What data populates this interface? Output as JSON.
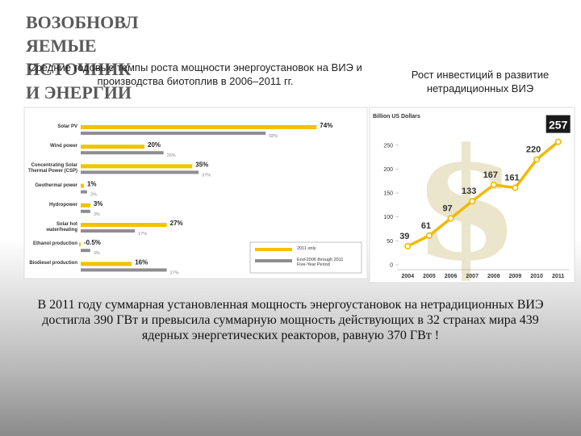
{
  "slide": {
    "title_lines": [
      "ВОЗОБНОВЛ",
      "ЯЕМЫЕ",
      "ИСТОЧНИК",
      "И ЭНЕРГИИ"
    ],
    "body": "В 2011 году суммарная установленная мощность энергоустановок на нетрадиционных ВИЭ достигла 390 ГВт и превысила суммарную мощность действующих в 32 странах мира 439 ядерных энергетических реакторов, равную 370 ГВт !"
  },
  "chart_data": [
    {
      "type": "hbar",
      "title": "Средние годовые темпы роста мощности энергоустановок на ВИЭ и производства биотоплив в 2006–2011 гг.",
      "categories": [
        "Solar PV",
        "Wind power",
        "Concentrating Solar Thermal Power (CSP)",
        "Geothermal power",
        "Hydropower",
        "Solar hot water/heating",
        "Ethanol production",
        "Biodiesel production"
      ],
      "series": [
        {
          "name": "2011 only",
          "color": "#f2c200",
          "values": [
            74,
            20,
            35,
            1,
            3,
            27,
            -0.5,
            16
          ],
          "value_labels": [
            "74%",
            "20%",
            "35%",
            "1%",
            "3%",
            "27%",
            "-0.5%",
            "16%"
          ]
        },
        {
          "name": "End-2006 through 2011 Five-Year Period",
          "color": "#8e8e8e",
          "values": [
            58,
            26,
            37,
            2,
            3,
            17,
            3,
            27
          ],
          "value_labels": [
            "58%",
            "26%",
            "37%",
            "2%",
            "3%",
            "17%",
            "3%",
            "27%"
          ]
        }
      ]
    },
    {
      "type": "line",
      "title": "Рост инвестиций в развитие нетрадиционных ВИЭ",
      "y_label": "Billion US Dollars",
      "categories": [
        "2004",
        "2005",
        "2006",
        "2007",
        "2008",
        "2009",
        "2010",
        "2011"
      ],
      "series": [
        {
          "color": "#f2b900",
          "values": [
            39,
            61,
            97,
            133,
            167,
            161,
            220,
            257
          ]
        }
      ],
      "ylim": [
        0,
        280
      ],
      "yticks": [
        0,
        50,
        100,
        150,
        200,
        250
      ]
    }
  ]
}
